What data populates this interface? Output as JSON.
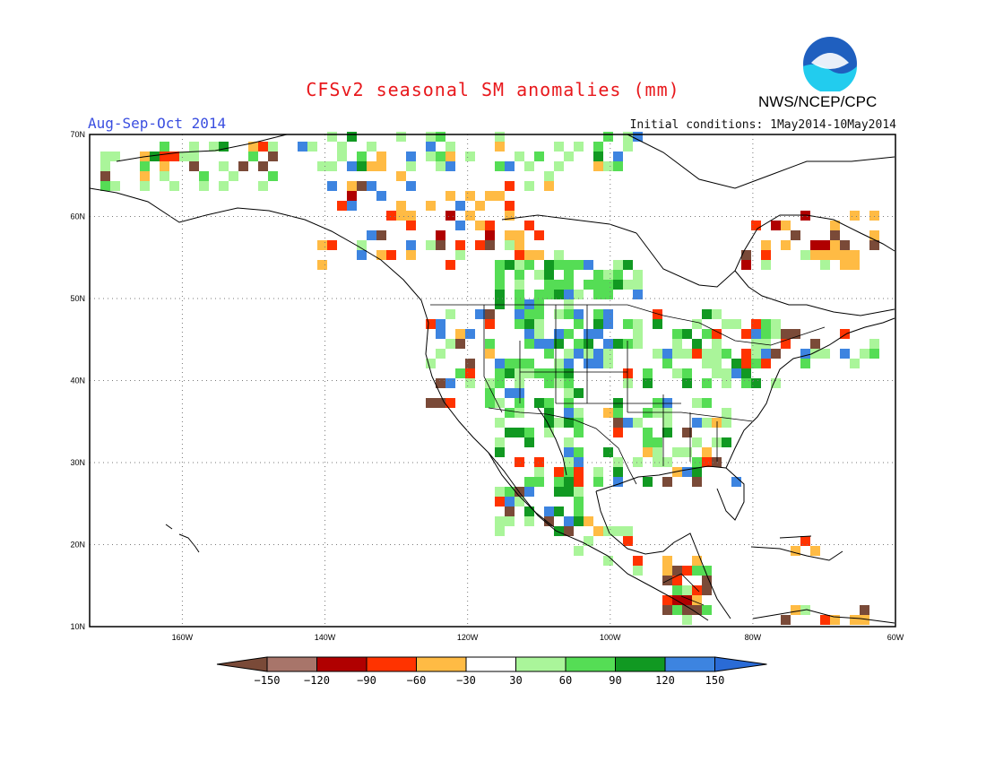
{
  "header": {
    "title": "CFSv2 seasonal SM anomalies (mm)",
    "period": "Aug-Sep-Oct 2014",
    "initial_conditions": "Initial conditions: 1May2014-10May2014",
    "agency": "NWS/NCEP/CPC",
    "logo_text": "NOAA"
  },
  "map": {
    "lon_range": [
      -173,
      -60
    ],
    "lat_range": [
      10,
      70
    ],
    "lat_labels": [
      "70N",
      "60N",
      "50N",
      "40N",
      "30N",
      "20N",
      "10N"
    ],
    "lon_labels": [
      "160W",
      "140W",
      "120W",
      "100W",
      "80W",
      "60W"
    ]
  },
  "legend": {
    "colors": [
      "#7a4a38",
      "#a8756a",
      "#b00000",
      "#ff3300",
      "#ffbb44",
      "#ffffff",
      "#aaf59a",
      "#55dd55",
      "#119922",
      "#3d84e0",
      "#2a6bd6"
    ],
    "labels": [
      "−150",
      "−120",
      "−90",
      "−60",
      "−30",
      "30",
      "60",
      "90",
      "120",
      "150"
    ]
  }
}
